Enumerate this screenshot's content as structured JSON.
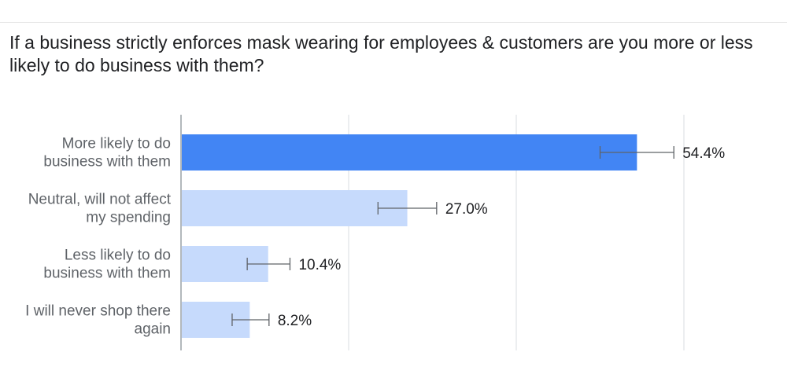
{
  "title": "If a business strictly enforces mask wearing for employees & customers are you more or less likely to do business with them?",
  "chart_data": {
    "type": "bar",
    "orientation": "horizontal",
    "title": "If a business strictly enforces mask wearing for employees & customers are you more or less likely to do business with them?",
    "categories": [
      [
        "More likely to do",
        "business with them"
      ],
      [
        "Neutral, will not affect",
        "my spending"
      ],
      [
        "Less likely to do",
        "business with them"
      ],
      [
        "I will never shop there",
        "again"
      ]
    ],
    "values": [
      54.4,
      27.0,
      10.4,
      8.2
    ],
    "labels": [
      "54.4%",
      "27.0%",
      "10.4%",
      "8.2%"
    ],
    "error_bars": [
      [
        50.0,
        58.8
      ],
      [
        23.5,
        30.5
      ],
      [
        7.9,
        13.0
      ],
      [
        6.1,
        10.5
      ]
    ],
    "xlim": [
      0,
      60
    ],
    "grid": true,
    "legend": "none",
    "colors": {
      "highlight": "#4285f4",
      "bar": "#c6dafc",
      "grid": "#dadce0",
      "axis": "#9aa0a6",
      "error": "#5f6368"
    }
  }
}
